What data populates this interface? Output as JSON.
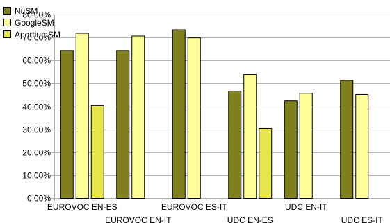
{
  "chart_data": {
    "type": "bar",
    "title": "",
    "xlabel": "",
    "ylabel": "",
    "categories": [
      "EUROVOC EN-ES",
      "EUROVOC EN-IT",
      "EUROVOC ES-IT",
      "UDC EN-ES",
      "UDC EN-IT",
      "UDC ES-IT"
    ],
    "series": [
      {
        "name": "NuSM",
        "color": "#7f7f1f",
        "values": [
          64.5,
          64.5,
          73.5,
          46.8,
          42.5,
          51.5
        ]
      },
      {
        "name": "GoogleSM",
        "color": "#ffff99",
        "values": [
          72.0,
          70.8,
          70.0,
          54.0,
          45.8,
          45.3
        ]
      },
      {
        "name": "ApertiumSM",
        "color": "#e6e64c",
        "values": [
          40.5,
          null,
          null,
          30.5,
          null,
          null
        ]
      }
    ],
    "ylim": [
      0,
      80
    ],
    "yticks": [
      "0.00%",
      "10.00%",
      "20.00%",
      "30.00%",
      "40.00%",
      "50.00%",
      "60.00%",
      "70.00%",
      "80.00%"
    ],
    "grid": true,
    "legend": "top-left"
  }
}
